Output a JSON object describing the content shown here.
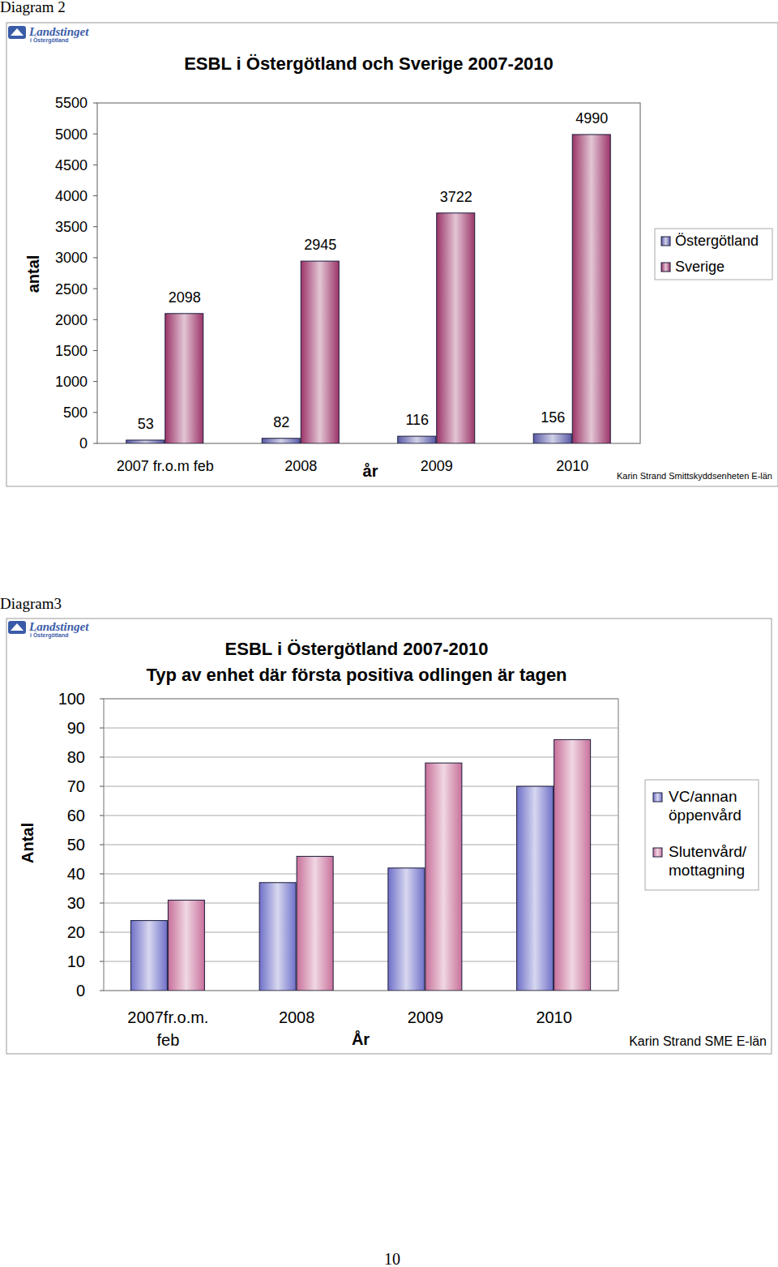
{
  "page": {
    "captions": [
      "Diagram 2",
      "Diagram3"
    ],
    "logo": [
      "Landstinget",
      "i Östergötland"
    ],
    "page_number": 10
  },
  "chart_data": [
    {
      "type": "bar",
      "title": "ESBL i Östergötland och Sverige 2007-2010",
      "x_label": "år",
      "y_label": "antal",
      "categories": [
        "2007 fr.o.m feb",
        "2008",
        "2009",
        "2010"
      ],
      "series": [
        {
          "name": "Östergötland",
          "color": "#5a5aa8",
          "values": [
            53,
            82,
            116,
            156
          ]
        },
        {
          "name": "Sverige",
          "color": "#9b3468",
          "values": [
            2098,
            2945,
            3722,
            4990
          ]
        }
      ],
      "ylim": [
        0,
        5500
      ],
      "yticks": [
        0,
        500,
        1000,
        1500,
        2000,
        2500,
        3000,
        3500,
        4000,
        4500,
        5000,
        5500
      ],
      "grid": false,
      "legend": "right",
      "data_labels": true,
      "annotations": [
        "Karin Strand Smittskyddsenheten E-län"
      ]
    },
    {
      "type": "bar",
      "title": "ESBL i Östergötland 2007-2010",
      "subtitle": "Typ av enhet där första positiva odlingen är tagen",
      "x_label": "År",
      "y_label": "Antal",
      "categories": [
        "2007fr.o.m. feb",
        "2008",
        "2009",
        "2010"
      ],
      "series": [
        {
          "name": "VC/annan öppenvård",
          "color": "#6f70c8",
          "values": [
            24,
            37,
            42,
            70
          ]
        },
        {
          "name": "Slutenvård/ mottagning",
          "color": "#c8709a",
          "values": [
            31,
            46,
            78,
            86
          ]
        }
      ],
      "ylim": [
        0,
        100
      ],
      "yticks": [
        0,
        10,
        20,
        30,
        40,
        50,
        60,
        70,
        80,
        90,
        100
      ],
      "grid": true,
      "legend": "right",
      "data_labels": false,
      "annotations": [
        "Karin Strand SME E-län"
      ]
    }
  ]
}
